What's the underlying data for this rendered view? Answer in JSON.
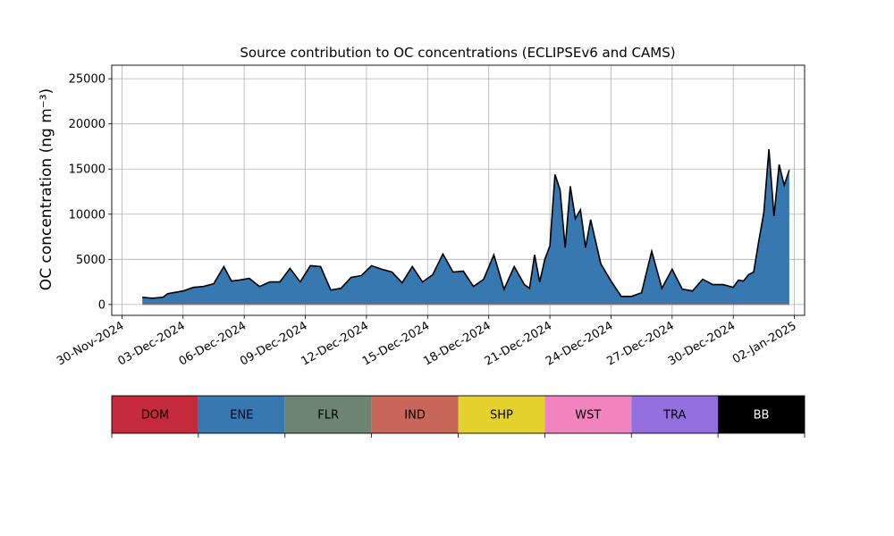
{
  "chart_data": {
    "type": "area",
    "title": "Source contribution to OC concentrations (ECLIPSEv6 and CAMS)",
    "ylabel": "OC concentration (ng m⁻³)",
    "xlabel": "",
    "x_range": [
      "2024-11-29T12:00",
      "2025-01-02T12:00"
    ],
    "ylim": [
      -1200,
      26500
    ],
    "grid": true,
    "x_ticks": [
      "30-Nov-2024",
      "03-Dec-2024",
      "06-Dec-2024",
      "09-Dec-2024",
      "12-Dec-2024",
      "15-Dec-2024",
      "18-Dec-2024",
      "21-Dec-2024",
      "24-Dec-2024",
      "27-Dec-2024",
      "30-Dec-2024",
      "02-Jan-2025"
    ],
    "y_ticks": [
      0,
      5000,
      10000,
      15000,
      20000,
      25000
    ],
    "x": [
      "2024-12-01T00:00",
      "2024-12-01T12:00",
      "2024-12-02T00:00",
      "2024-12-02T06:00",
      "2024-12-02T12:00",
      "2024-12-03T00:00",
      "2024-12-03T12:00",
      "2024-12-04T00:00",
      "2024-12-04T12:00",
      "2024-12-05T00:00",
      "2024-12-05T09:00",
      "2024-12-05T18:00",
      "2024-12-06T06:00",
      "2024-12-06T18:00",
      "2024-12-07T06:00",
      "2024-12-07T18:00",
      "2024-12-08T06:00",
      "2024-12-08T18:00",
      "2024-12-09T06:00",
      "2024-12-09T18:00",
      "2024-12-10T06:00",
      "2024-12-10T18:00",
      "2024-12-11T06:00",
      "2024-12-11T18:00",
      "2024-12-12T06:00",
      "2024-12-12T18:00",
      "2024-12-13T06:00",
      "2024-12-13T18:00",
      "2024-12-14T06:00",
      "2024-12-14T18:00",
      "2024-12-15T06:00",
      "2024-12-15T18:00",
      "2024-12-16T06:00",
      "2024-12-16T18:00",
      "2024-12-17T06:00",
      "2024-12-17T18:00",
      "2024-12-18T06:00",
      "2024-12-18T18:00",
      "2024-12-19T06:00",
      "2024-12-19T18:00",
      "2024-12-20T00:00",
      "2024-12-20T06:00",
      "2024-12-20T12:00",
      "2024-12-20T18:00",
      "2024-12-21T00:00",
      "2024-12-21T06:00",
      "2024-12-21T12:00",
      "2024-12-21T18:00",
      "2024-12-22T00:00",
      "2024-12-22T06:00",
      "2024-12-22T12:00",
      "2024-12-22T18:00",
      "2024-12-23T00:00",
      "2024-12-23T12:00",
      "2024-12-24T00:00",
      "2024-12-24T12:00",
      "2024-12-25T00:00",
      "2024-12-25T12:00",
      "2024-12-26T00:00",
      "2024-12-26T12:00",
      "2024-12-27T00:00",
      "2024-12-27T12:00",
      "2024-12-28T00:00",
      "2024-12-28T12:00",
      "2024-12-29T00:00",
      "2024-12-29T12:00",
      "2024-12-30T00:00",
      "2024-12-30T06:00",
      "2024-12-30T12:00",
      "2024-12-30T18:00",
      "2024-12-31T00:00",
      "2024-12-31T06:00",
      "2024-12-31T12:00",
      "2024-12-31T18:00",
      "2025-01-01T00:00",
      "2025-01-01T06:00",
      "2025-01-01T12:00",
      "2025-01-01T18:00"
    ],
    "series": [
      {
        "name": "ENE",
        "color": "#3778b0",
        "values": [
          800,
          700,
          800,
          1200,
          1300,
          1500,
          1900,
          2000,
          2300,
          4200,
          2600,
          2700,
          2900,
          2000,
          2500,
          2500,
          4000,
          2500,
          4300,
          4200,
          1600,
          1800,
          3000,
          3200,
          4300,
          3900,
          3600,
          2400,
          4200,
          2500,
          3300,
          5600,
          3600,
          3700,
          2000,
          2800,
          5500,
          1700,
          4200,
          2200,
          1800,
          5500,
          2500,
          5000,
          6500,
          14400,
          12700,
          6300,
          13100,
          9500,
          10500,
          6300,
          9400,
          4500,
          2600,
          900,
          900,
          1300,
          5900,
          1800,
          3900,
          1700,
          1500,
          2800,
          2200,
          2200,
          1900,
          2700,
          2600,
          3300,
          3600,
          7000,
          10200,
          17200,
          9800,
          15500,
          13200,
          14900
        ]
      }
    ],
    "legend": {
      "placement": "below",
      "entries": [
        {
          "label": "DOM",
          "color": "#c52a3a",
          "text_color": "#000000"
        },
        {
          "label": "ENE",
          "color": "#3778b0",
          "text_color": "#000000"
        },
        {
          "label": "FLR",
          "color": "#6e8472",
          "text_color": "#000000"
        },
        {
          "label": "IND",
          "color": "#c9665a",
          "text_color": "#000000"
        },
        {
          "label": "SHP",
          "color": "#e6d22e",
          "text_color": "#000000"
        },
        {
          "label": "WST",
          "color": "#f184bf",
          "text_color": "#000000"
        },
        {
          "label": "TRA",
          "color": "#936fdd",
          "text_color": "#000000"
        },
        {
          "label": "BB",
          "color": "#000000",
          "text_color": "#ffffff"
        }
      ]
    }
  }
}
